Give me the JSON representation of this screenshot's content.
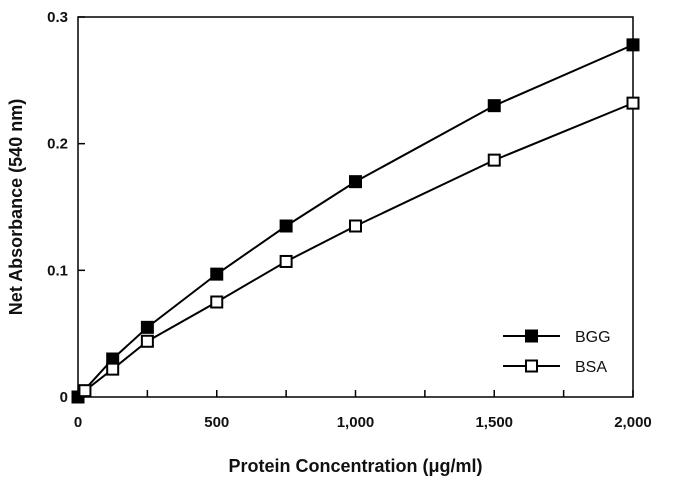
{
  "chart_data": {
    "type": "line",
    "title": "",
    "xlabel": "Protein Concentration (μg/ml)",
    "ylabel": "Net Absorbance (540 nm)",
    "xlim": [
      0,
      2000
    ],
    "ylim": [
      0,
      0.3
    ],
    "x_ticks": [
      {
        "value": 0,
        "label": "0"
      },
      {
        "value": 500,
        "label": "500"
      },
      {
        "value": 1000,
        "label": "1,000"
      },
      {
        "value": 1500,
        "label": "1,500"
      },
      {
        "value": 2000,
        "label": "2,000"
      }
    ],
    "x_minor_ticks": [
      250,
      750,
      1250,
      1750
    ],
    "y_ticks": [
      {
        "value": 0,
        "label": "0"
      },
      {
        "value": 0.1,
        "label": "0.1"
      },
      {
        "value": 0.2,
        "label": "0.2"
      },
      {
        "value": 0.3,
        "label": "0.3"
      }
    ],
    "grid": false,
    "legend_position": "bottom-right",
    "series": [
      {
        "name": "BGG",
        "marker": "filled-square",
        "color": "#000000",
        "x": [
          0,
          125,
          250,
          500,
          750,
          1000,
          1500,
          2000
        ],
        "y": [
          0.0,
          0.03,
          0.055,
          0.097,
          0.135,
          0.17,
          0.23,
          0.278
        ]
      },
      {
        "name": "BSA",
        "marker": "open-square",
        "color": "#000000",
        "x": [
          25,
          125,
          250,
          500,
          750,
          1000,
          1500,
          2000
        ],
        "y": [
          0.005,
          0.022,
          0.044,
          0.075,
          0.107,
          0.135,
          0.187,
          0.232
        ]
      }
    ]
  }
}
